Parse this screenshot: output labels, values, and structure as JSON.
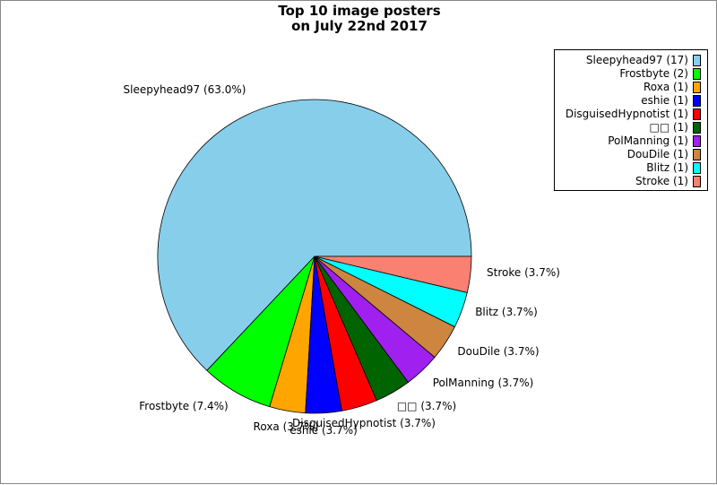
{
  "chart_data": {
    "type": "pie",
    "title": [
      "Top 10 image posters",
      "on July 22nd 2017"
    ],
    "slices": [
      {
        "label": "Sleepyhead97",
        "value": 17,
        "pct": "63.0%",
        "color": "#87ceeb"
      },
      {
        "label": "Frostbyte",
        "value": 2,
        "pct": "7.4%",
        "color": "#00ff00"
      },
      {
        "label": "Roxa",
        "value": 1,
        "pct": "3.7%",
        "color": "#ffa500"
      },
      {
        "label": "eshie",
        "value": 1,
        "pct": "3.7%",
        "color": "#0000ff"
      },
      {
        "label": "DisguisedHypnotist",
        "value": 1,
        "pct": "3.7%",
        "color": "#ff0000"
      },
      {
        "label": "□□",
        "value": 1,
        "pct": "3.7%",
        "color": "#006400"
      },
      {
        "label": "PolManning",
        "value": 1,
        "pct": "3.7%",
        "color": "#a020f0"
      },
      {
        "label": "DouDile",
        "value": 1,
        "pct": "3.7%",
        "color": "#cd853f"
      },
      {
        "label": "Blitz",
        "value": 1,
        "pct": "3.7%",
        "color": "#00ffff"
      },
      {
        "label": "Stroke",
        "value": 1,
        "pct": "3.7%",
        "color": "#fa8072"
      }
    ],
    "legend_position": "top-right"
  }
}
